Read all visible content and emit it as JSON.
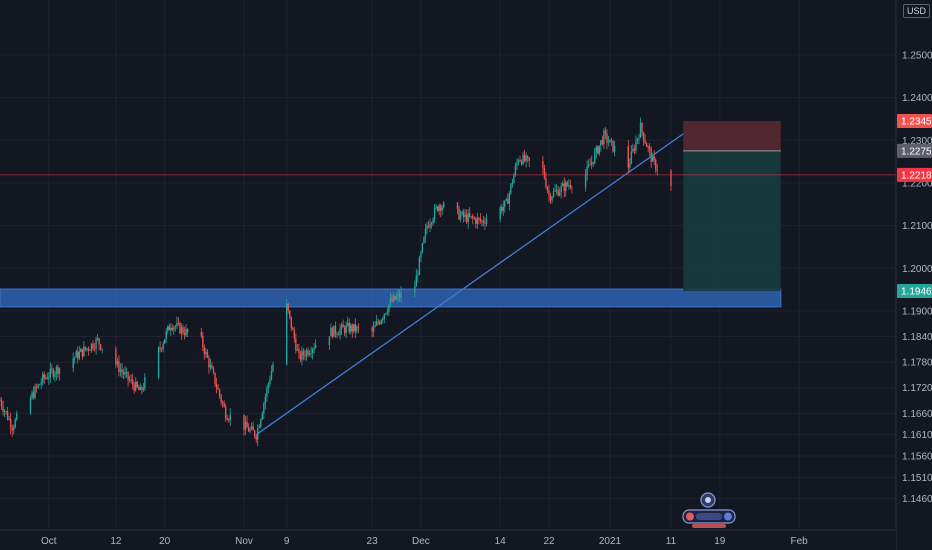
{
  "currency_label": "USD",
  "colors": {
    "background": "#131722",
    "grid": "#1e2230",
    "up": "#26a69a",
    "down": "#ef5350",
    "trendline": "#3d7fd6",
    "support_zone": "#2d5ea8",
    "stop_zone": "#5c2a33",
    "target_zone": "#173c3e",
    "current_price": "#f23645",
    "entry_line": "#9598a1"
  },
  "chart_data": {
    "type": "candlestick",
    "title": "",
    "xlabel": "",
    "ylabel": "",
    "ylim": [
      1.141,
      1.261
    ],
    "grid": true,
    "y_ticks": [
      "1.25000",
      "1.24000",
      "1.23000",
      "1.22000",
      "1.21000",
      "1.20000",
      "1.19000",
      "1.18400",
      "1.17800",
      "1.17200",
      "1.16600",
      "1.16100",
      "1.15600",
      "1.15100",
      "1.14600"
    ],
    "x_ticks": [
      "Oct",
      "12",
      "20",
      "Nov",
      "9",
      "23",
      "Dec",
      "14",
      "22",
      "2021",
      "11",
      "19",
      "Feb"
    ],
    "price_badges": [
      {
        "value": "1.23451",
        "role": "stop-loss"
      },
      {
        "value": "1.22752",
        "role": "entry"
      },
      {
        "value": "1.22189",
        "role": "current-price"
      },
      {
        "value": "1.19467",
        "role": "take-profit"
      }
    ],
    "price_path": [
      {
        "date": "2020-09-23",
        "price": 1.169
      },
      {
        "date": "2020-09-25",
        "price": 1.163
      },
      {
        "date": "2020-09-30",
        "price": 1.174
      },
      {
        "date": "2020-10-05",
        "price": 1.179
      },
      {
        "date": "2020-10-09",
        "price": 1.183
      },
      {
        "date": "2020-10-14",
        "price": 1.174
      },
      {
        "date": "2020-10-16",
        "price": 1.171
      },
      {
        "date": "2020-10-21",
        "price": 1.187
      },
      {
        "date": "2020-10-26",
        "price": 1.183
      },
      {
        "date": "2020-10-30",
        "price": 1.166
      },
      {
        "date": "2020-11-04",
        "price": 1.161
      },
      {
        "date": "2020-11-09",
        "price": 1.191
      },
      {
        "date": "2020-11-11",
        "price": 1.179
      },
      {
        "date": "2020-11-16",
        "price": 1.185
      },
      {
        "date": "2020-11-19",
        "price": 1.186
      },
      {
        "date": "2020-11-23",
        "price": 1.185
      },
      {
        "date": "2020-11-26",
        "price": 1.192
      },
      {
        "date": "2020-11-30",
        "price": 1.196
      },
      {
        "date": "2020-12-02",
        "price": 1.21
      },
      {
        "date": "2020-12-04",
        "price": 1.215
      },
      {
        "date": "2020-12-08",
        "price": 1.212
      },
      {
        "date": "2020-12-11",
        "price": 1.211
      },
      {
        "date": "2020-12-15",
        "price": 1.215
      },
      {
        "date": "2020-12-17",
        "price": 1.226
      },
      {
        "date": "2020-12-21",
        "price": 1.223
      },
      {
        "date": "2020-12-22",
        "price": 1.217
      },
      {
        "date": "2020-12-28",
        "price": 1.222
      },
      {
        "date": "2020-12-31",
        "price": 1.231
      },
      {
        "date": "2021-01-04",
        "price": 1.224
      },
      {
        "date": "2021-01-06",
        "price": 1.233
      },
      {
        "date": "2021-01-08",
        "price": 1.225
      },
      {
        "date": "2021-01-11",
        "price": 1.219
      }
    ],
    "trendline": {
      "start": {
        "date": "2020-11-04",
        "price": 1.161
      },
      "end": {
        "date": "2021-01-13",
        "price": 1.2315
      }
    },
    "support_zone": {
      "from_date": "2020-09-23",
      "to_date": "2021-01-29",
      "low": 1.1933,
      "high": 1.19467
    },
    "position": {
      "entry": 1.22752,
      "stop": 1.23451,
      "target": 1.19467,
      "from_date": "2021-01-13",
      "to_date": "2021-01-29"
    },
    "current_price": 1.22189
  }
}
